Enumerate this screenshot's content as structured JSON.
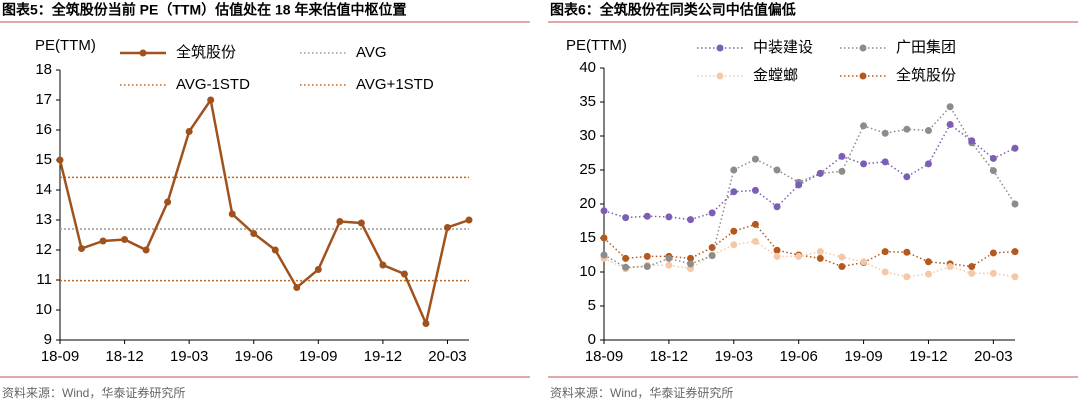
{
  "chart_data": [
    {
      "type": "line",
      "title": "图表5：全筑股份当前 PE（TTM）估值处在 18 年来估值中枢位置",
      "ylabel": "PE(TTM)",
      "source": "资料来源：Wind，华泰证券研究所",
      "categories": [
        "18-09",
        null,
        null,
        "18-12",
        null,
        null,
        "19-03",
        null,
        null,
        "19-06",
        null,
        null,
        "19-09",
        null,
        null,
        "19-12",
        null,
        null,
        "20-03",
        null
      ],
      "series": [
        {
          "name": "全筑股份",
          "color": "#a0521d",
          "line_style": "solid",
          "values": [
            15.0,
            12.05,
            12.3,
            12.35,
            12.0,
            13.6,
            15.95,
            17.0,
            13.2,
            12.55,
            12.0,
            10.75,
            11.35,
            12.95,
            12.9,
            11.5,
            11.2,
            9.55,
            12.75,
            13.0
          ]
        }
      ],
      "hlines": [
        {
          "name": "AVG",
          "color": "#999999",
          "value": 12.7
        },
        {
          "name": "AVG-1STD",
          "color": "#c0681f",
          "value": 10.98
        },
        {
          "name": "AVG+1STD",
          "color": "#c0681f",
          "value": 14.42
        }
      ],
      "ylim": [
        9,
        18
      ],
      "yticks": [
        9,
        10,
        11,
        12,
        13,
        14,
        15,
        16,
        17,
        18
      ]
    },
    {
      "type": "line",
      "title": "图表6：全筑股份在同类公司中估值偏低",
      "ylabel": "PE(TTM)",
      "source": "资料来源：Wind，华泰证券研究所",
      "categories": [
        "18-09",
        null,
        null,
        "18-12",
        null,
        null,
        "19-03",
        null,
        null,
        "19-06",
        null,
        null,
        "19-09",
        null,
        null,
        "19-12",
        null,
        null,
        "20-03",
        null
      ],
      "series": [
        {
          "name": "全筑股份",
          "color": "#b5581c",
          "line_style": "dotted",
          "values": [
            15.0,
            12.0,
            12.3,
            12.3,
            12.0,
            13.6,
            16.0,
            17.0,
            13.2,
            12.5,
            12.0,
            10.8,
            11.4,
            13.0,
            12.9,
            11.5,
            11.2,
            10.8,
            12.8,
            13.0
          ]
        },
        {
          "name": "金螳螂",
          "color": "#f4c8a8",
          "line_style": "dotted",
          "values": [
            12.0,
            10.5,
            11.0,
            11.0,
            10.5,
            12.5,
            14.0,
            14.5,
            12.3,
            12.3,
            13.0,
            12.2,
            11.5,
            10.0,
            9.3,
            9.7,
            10.8,
            9.8,
            9.8,
            9.3
          ]
        },
        {
          "name": "广田集团",
          "color": "#8c8c8c",
          "line_style": "dotted",
          "values": [
            12.5,
            10.7,
            10.8,
            12.0,
            11.2,
            12.4,
            25.0,
            26.6,
            25.0,
            23.2,
            24.5,
            24.8,
            31.5,
            30.4,
            31.0,
            30.8,
            34.3,
            29.0,
            24.9,
            20.0
          ]
        },
        {
          "name": "中装建设",
          "color": "#7b5fb5",
          "line_style": "dotted",
          "values": [
            19.0,
            18.0,
            18.2,
            18.1,
            17.7,
            18.7,
            21.8,
            22.0,
            19.6,
            22.8,
            24.5,
            27.0,
            25.9,
            26.2,
            24.0,
            25.9,
            31.7,
            29.3,
            26.7,
            28.2
          ]
        }
      ],
      "ylim": [
        0,
        40
      ],
      "yticks": [
        0,
        5,
        10,
        15,
        20,
        25,
        30,
        35,
        40
      ]
    }
  ]
}
